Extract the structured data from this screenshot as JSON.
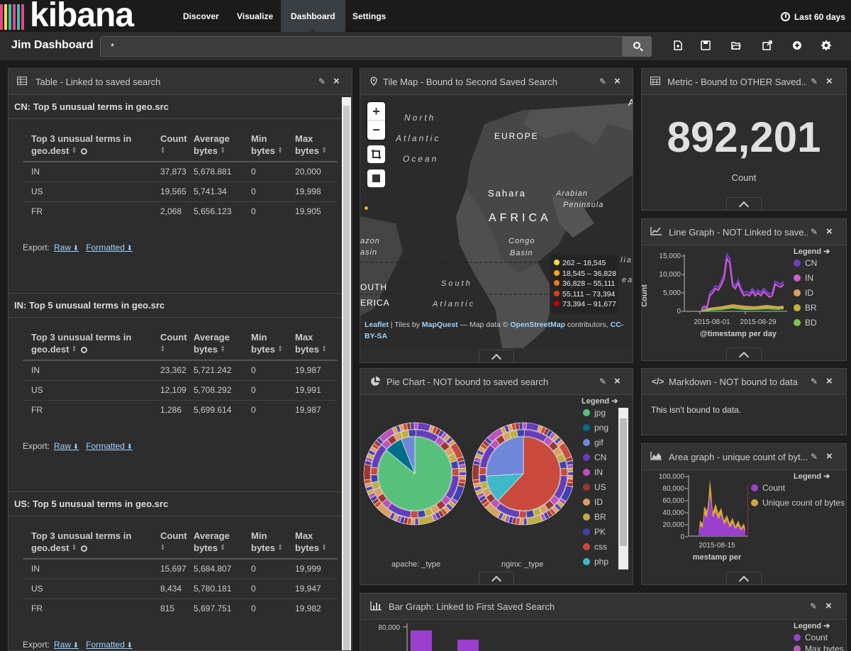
{
  "nav": {
    "logo": "kibana",
    "tabs": [
      "Discover",
      "Visualize",
      "Dashboard",
      "Settings"
    ],
    "active_tab": "Dashboard",
    "time_range": "Last 60 days"
  },
  "toolbar": {
    "dashboard_title": "Jim Dashboard",
    "query_value": "*",
    "icons": [
      "new-dashboard-icon",
      "save-icon",
      "open-icon",
      "share-icon",
      "add-visualization-icon",
      "settings-icon"
    ]
  },
  "table_panel": {
    "title": "Table - Linked to saved search",
    "column_headers": {
      "term_line1": "Top 3 unusual terms in",
      "term_line2": "geo.dest",
      "count": "Count",
      "avg_line1": "Average",
      "avg_line2": "bytes",
      "min_line1": "Min",
      "min_line2": "bytes",
      "max_line1": "Max",
      "max_line2": "bytes"
    },
    "export_label": "Export:",
    "raw_label": "Raw",
    "formatted_label": "Formatted",
    "sections": [
      {
        "title": "CN: Top 5 unusual terms in geo.src",
        "rows": [
          {
            "term": "IN",
            "count": "37,873",
            "avg": "5,678.881",
            "min": "0",
            "max": "20,000"
          },
          {
            "term": "US",
            "count": "19,565",
            "avg": "5,741.34",
            "min": "0",
            "max": "19,998"
          },
          {
            "term": "FR",
            "count": "2,068",
            "avg": "5,656.123",
            "min": "0",
            "max": "19,905"
          }
        ]
      },
      {
        "title": "IN: Top 5 unusual terms in geo.src",
        "rows": [
          {
            "term": "IN",
            "count": "23,362",
            "avg": "5,721.242",
            "min": "0",
            "max": "19,987"
          },
          {
            "term": "US",
            "count": "12,109",
            "avg": "5,708.292",
            "min": "0",
            "max": "19,991"
          },
          {
            "term": "FR",
            "count": "1,286",
            "avg": "5,699.614",
            "min": "0",
            "max": "19,987"
          }
        ]
      },
      {
        "title": "US: Top 5 unusual terms in geo.src",
        "rows": [
          {
            "term": "IN",
            "count": "15,697",
            "avg": "5,684.807",
            "min": "0",
            "max": "19,999"
          },
          {
            "term": "US",
            "count": "8,434",
            "avg": "5,780.181",
            "min": "0",
            "max": "19,947"
          },
          {
            "term": "FR",
            "count": "815",
            "avg": "5,697.751",
            "min": "0",
            "max": "19,982"
          }
        ]
      }
    ]
  },
  "map_panel": {
    "title": "Tile Map - Bound to Second Saved Search",
    "zoom_in": "+",
    "zoom_out": "−",
    "labels": {
      "north": "North",
      "atlantic": "Atlantic",
      "ocean": "Ocean",
      "europe": "EUROPE",
      "sahara": "Sahara",
      "arabian": "Arabian",
      "peninsula": "Peninsula",
      "africa": "AFRICA",
      "amazon": "azon",
      "basin_w": "asin",
      "congo": "Congo",
      "basin": "Basin",
      "south_am": "OUTH",
      "erica": "ERICA",
      "south": "South",
      "atlantic2": "Atlantic",
      "a_cut": "A",
      "lia": "lia",
      "ea": "ea"
    },
    "legend": [
      {
        "range": "262 – 18,545",
        "color": "#f5e142"
      },
      {
        "range": "18,545 – 36,828",
        "color": "#f5a623"
      },
      {
        "range": "36,828 – 55,111",
        "color": "#f07a1d"
      },
      {
        "range": "55,111 – 73,394",
        "color": "#e83a16"
      },
      {
        "range": "73,394 – 91,677",
        "color": "#c40000"
      }
    ],
    "attribution_leaflet": "Leaflet",
    "attribution_tiles": " | Tiles by ",
    "attribution_mapquest": "MapQuest",
    "attribution_mapdata": " — Map data © ",
    "attribution_osm": "OpenStreetMap",
    "attribution_contrib": " contributors, ",
    "attribution_cc1": "CC-",
    "attribution_cc2": "BY-SA"
  },
  "metric_panel": {
    "title": "Metric - Bound to OTHER Saved...",
    "value": "892,201",
    "label": "Count"
  },
  "line_panel": {
    "title": "Line Graph - NOT Linked to save...",
    "legend_title": "Legend",
    "ylabel": "Count",
    "xlabel": "@timestamp per day",
    "yticks": [
      "15,000",
      "10,000",
      "5,000",
      "0"
    ],
    "xticks": [
      "2015-08-01",
      "2015-08-29"
    ],
    "legend": [
      {
        "name": "CN",
        "color": "#6f3ec4"
      },
      {
        "name": "IN",
        "color": "#d35ad0"
      },
      {
        "name": "ID",
        "color": "#e29f55"
      },
      {
        "name": "BR",
        "color": "#c9b23a"
      },
      {
        "name": "BD",
        "color": "#7dc64f"
      }
    ]
  },
  "pie_panel": {
    "title": "Pie Chart - NOT bound to saved search",
    "legend_title": "Legend",
    "caption_left": "apache: _type",
    "caption_right": "nginx: _type",
    "legend": [
      {
        "name": "jpg",
        "color": "#57c17b"
      },
      {
        "name": "png",
        "color": "#006e8a"
      },
      {
        "name": "gif",
        "color": "#6f87d8"
      },
      {
        "name": "CN",
        "color": "#663db8"
      },
      {
        "name": "IN",
        "color": "#bc52bc"
      },
      {
        "name": "US",
        "color": "#9e3533"
      },
      {
        "name": "ID",
        "color": "#daa05d"
      },
      {
        "name": "BR",
        "color": "#bfaf40"
      },
      {
        "name": "PK",
        "color": "#4040b0"
      },
      {
        "name": "css",
        "color": "#c94a3c"
      },
      {
        "name": "php",
        "color": "#3fb8c9"
      }
    ]
  },
  "markdown_panel": {
    "title": "Markdown - NOT bound to data",
    "text": "This isn't bound to data."
  },
  "area_panel": {
    "title": "Area graph - unique count of byt...",
    "legend_title": "Legend",
    "yticks": [
      "100,000",
      "80,000",
      "60,000",
      "40,000",
      "20,000",
      "0"
    ],
    "xtick": "2015-08-15",
    "xlabel": "mestamp per",
    "legend": [
      {
        "name": "Count",
        "color": "#9b3fcf"
      },
      {
        "name": "Unique count of bytes",
        "color": "#d4a73a"
      }
    ]
  },
  "bar_panel": {
    "title": "Bar Graph: Linked to First Saved Search",
    "legend_title": "Legend",
    "ytick": "80,000",
    "legend": [
      {
        "name": "Count",
        "color": "#9b3fcf"
      },
      {
        "name": "Max bytes",
        "color": "#c054c0"
      }
    ]
  }
}
